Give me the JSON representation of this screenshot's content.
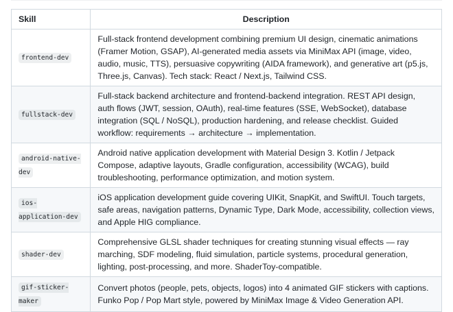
{
  "table": {
    "headers": {
      "skill": "Skill",
      "description": "Description"
    },
    "rows": [
      {
        "skill": "frontend-dev",
        "description": [
          "Full-stack frontend development combining premium UI design, cinematic animations",
          "(Framer Motion, GSAP), AI-generated media assets via MiniMax API (image, video,",
          "audio, music, TTS), persuasive copywriting (AIDA framework), and generative art (p5.js,",
          "Three.js, Canvas). Tech stack: React / Next.js, Tailwind CSS."
        ]
      },
      {
        "skill": "fullstack-dev",
        "description": [
          "Full-stack backend architecture and frontend-backend integration. REST API design,",
          "auth flows (JWT, session, OAuth), real-time features (SSE, WebSocket), database",
          "integration (SQL / NoSQL), production hardening, and release checklist. Guided",
          "workflow: requirements → architecture → implementation."
        ]
      },
      {
        "skill": "android-native-dev",
        "description": [
          "Android native application development with Material Design 3. Kotlin / Jetpack",
          "Compose, adaptive layouts, Gradle configuration, accessibility (WCAG), build",
          "troubleshooting, performance optimization, and motion system."
        ]
      },
      {
        "skill": "ios-application-dev",
        "description": [
          "iOS application development guide covering UIKit, SnapKit, and SwiftUI. Touch targets,",
          "safe areas, navigation patterns, Dynamic Type, Dark Mode, accessibility, collection views,",
          "and Apple HIG compliance."
        ]
      },
      {
        "skill": "shader-dev",
        "description": [
          "Comprehensive GLSL shader techniques for creating stunning visual effects — ray",
          "marching, SDF modeling, fluid simulation, particle systems, procedural generation,",
          "lighting, post-processing, and more. ShaderToy-compatible."
        ]
      },
      {
        "skill": "gif-sticker-maker",
        "description": [
          "Convert photos (people, pets, objects, logos) into 4 animated GIF stickers with captions.",
          "Funko Pop / Pop Mart style, powered by MiniMax Image & Video Generation API."
        ]
      }
    ]
  }
}
